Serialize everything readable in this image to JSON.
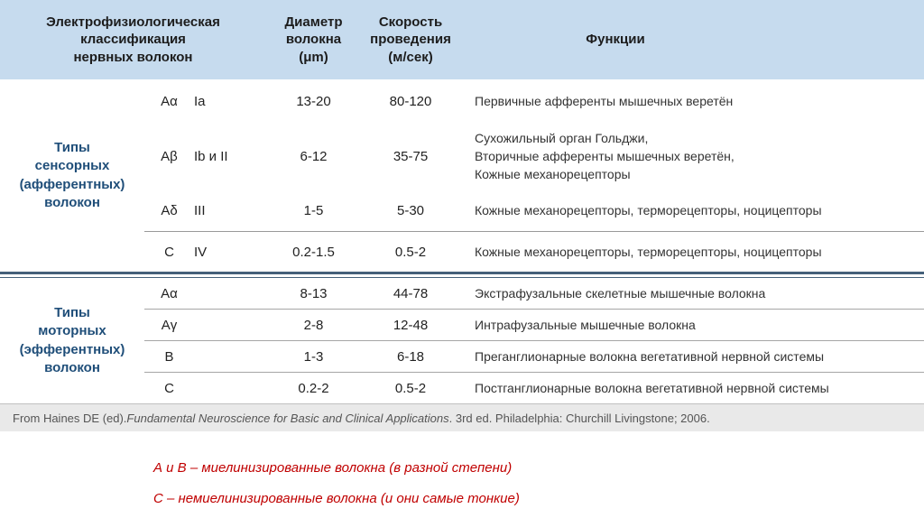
{
  "table": {
    "header": {
      "classification": "Электрофизиологическая\nклассификация\nнервных волокон",
      "diameter": "Диаметр\nволокна\n(μm)",
      "velocity": "Скорость\nпроведения\n(м/сек)",
      "functions": "Функции"
    },
    "sections": [
      {
        "label": "Типы\nсенсорных\n(афферентных)\nволокон",
        "rows": [
          {
            "fiber": "Aα",
            "subtype": "Ia",
            "diameter": "13-20",
            "velocity": "80-120",
            "function": "Первичные афференты мышечных веретён"
          },
          {
            "fiber": "Aβ",
            "subtype": "Ib и II",
            "diameter": "6-12",
            "velocity": "35-75",
            "function": "Сухожильный орган Гольджи,\nВторичные афференты мышечных веретён,\nКожные механорецепторы"
          },
          {
            "fiber": "Aδ",
            "subtype": "III",
            "diameter": "1-5",
            "velocity": "5-30",
            "function": "Кожные механорецепторы, терморецепторы, ноцицепторы"
          },
          {
            "fiber": "C",
            "subtype": "IV",
            "diameter": "0.2-1.5",
            "velocity": "0.5-2",
            "function": "Кожные механорецепторы, терморецепторы, ноцицепторы"
          }
        ]
      },
      {
        "label": "Типы\nмоторных\n(эфферентных)\nволокон",
        "rows": [
          {
            "fiber": "Aα",
            "subtype": "",
            "diameter": "8-13",
            "velocity": "44-78",
            "function": "Экстрафузальные скелетные мышечные волокна"
          },
          {
            "fiber": "Aγ",
            "subtype": "",
            "diameter": "2-8",
            "velocity": "12-48",
            "function": "Интрафузальные мышечные волокна"
          },
          {
            "fiber": "B",
            "subtype": "",
            "diameter": "1-3",
            "velocity": "6-18",
            "function": "Преганглионарные волокна вегетативной нервной системы"
          },
          {
            "fiber": "C",
            "subtype": "",
            "diameter": "0.2-2",
            "velocity": "0.5-2",
            "function": "Постганглионарные волокна вегетативной нервной системы"
          }
        ]
      }
    ],
    "citation": {
      "prefix": "From Haines DE (ed). ",
      "title": "Fundamental Neuroscience for Basic and Clinical Applications",
      "suffix": ". 3rd ed. Philadelphia: Churchill Livingstone; 2006."
    }
  },
  "notes": [
    "А и В – миелинизированные волокна (в разной степени)",
    "С – немиелинизированные волокна (и они самые тонкие)"
  ],
  "colors": {
    "header_bg": "#c6dbee",
    "section_label_blue": "#1f4e79",
    "divider_blue": "#44607a",
    "citation_bg": "#e9e9e9",
    "note_red": "#c00000"
  }
}
